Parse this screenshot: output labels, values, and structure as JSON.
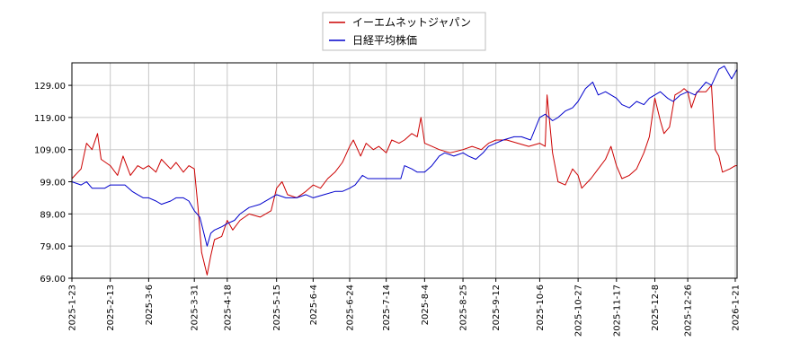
{
  "chart_data": {
    "type": "line",
    "title": "",
    "xlabel": "",
    "ylabel": "",
    "ylim": [
      69.0,
      136.0
    ],
    "xlim": [
      "2025-01-23",
      "2026-01-22"
    ],
    "grid": true,
    "legend_position": "top-center",
    "y_ticks": [
      "69.00",
      "79.00",
      "89.00",
      "99.00",
      "109.00",
      "119.00",
      "129.00"
    ],
    "x_ticks": [
      "2025-1-23",
      "2025-2-13",
      "2025-3-6",
      "2025-3-31",
      "2025-4-18",
      "2025-5-15",
      "2025-6-4",
      "2025-6-24",
      "2025-7-14",
      "2025-8-4",
      "2025-8-25",
      "2025-9-12",
      "2025-10-6",
      "2025-10-27",
      "2025-11-17",
      "2025-12-8",
      "2025-12-26",
      "2026-1-21"
    ],
    "series": [
      {
        "name": "イーエムネットジャパン",
        "color": "#cc0000",
        "points": [
          [
            "2025-01-23",
            100
          ],
          [
            "2025-01-28",
            103
          ],
          [
            "2025-01-31",
            111
          ],
          [
            "2025-02-03",
            109
          ],
          [
            "2025-02-06",
            114
          ],
          [
            "2025-02-08",
            106
          ],
          [
            "2025-02-13",
            104
          ],
          [
            "2025-02-17",
            101
          ],
          [
            "2025-02-20",
            107
          ],
          [
            "2025-02-24",
            101
          ],
          [
            "2025-02-28",
            104
          ],
          [
            "2025-03-03",
            103
          ],
          [
            "2025-03-06",
            104
          ],
          [
            "2025-03-10",
            102
          ],
          [
            "2025-03-13",
            106
          ],
          [
            "2025-03-18",
            103
          ],
          [
            "2025-03-21",
            105
          ],
          [
            "2025-03-25",
            102
          ],
          [
            "2025-03-28",
            104
          ],
          [
            "2025-03-31",
            103
          ],
          [
            "2025-04-02",
            91
          ],
          [
            "2025-04-04",
            77
          ],
          [
            "2025-04-07",
            70
          ],
          [
            "2025-04-09",
            76
          ],
          [
            "2025-04-11",
            81
          ],
          [
            "2025-04-15",
            82
          ],
          [
            "2025-04-18",
            87
          ],
          [
            "2025-04-21",
            84
          ],
          [
            "2025-04-25",
            87
          ],
          [
            "2025-04-30",
            89
          ],
          [
            "2025-05-06",
            88
          ],
          [
            "2025-05-12",
            90
          ],
          [
            "2025-05-15",
            97
          ],
          [
            "2025-05-18",
            99
          ],
          [
            "2025-05-21",
            95
          ],
          [
            "2025-05-26",
            94
          ],
          [
            "2025-05-31",
            96
          ],
          [
            "2025-06-04",
            98
          ],
          [
            "2025-06-08",
            97
          ],
          [
            "2025-06-12",
            100
          ],
          [
            "2025-06-16",
            102
          ],
          [
            "2025-06-20",
            105
          ],
          [
            "2025-06-24",
            110
          ],
          [
            "2025-06-26",
            112
          ],
          [
            "2025-06-30",
            107
          ],
          [
            "2025-07-03",
            111
          ],
          [
            "2025-07-07",
            109
          ],
          [
            "2025-07-10",
            110
          ],
          [
            "2025-07-14",
            108
          ],
          [
            "2025-07-17",
            112
          ],
          [
            "2025-07-21",
            111
          ],
          [
            "2025-07-24",
            112
          ],
          [
            "2025-07-28",
            114
          ],
          [
            "2025-07-31",
            113
          ],
          [
            "2025-08-02",
            119
          ],
          [
            "2025-08-04",
            111
          ],
          [
            "2025-08-08",
            110
          ],
          [
            "2025-08-12",
            109
          ],
          [
            "2025-08-18",
            108
          ],
          [
            "2025-08-25",
            109
          ],
          [
            "2025-08-30",
            110
          ],
          [
            "2025-09-04",
            109
          ],
          [
            "2025-09-08",
            111
          ],
          [
            "2025-09-12",
            112
          ],
          [
            "2025-09-18",
            112
          ],
          [
            "2025-09-24",
            111
          ],
          [
            "2025-09-30",
            110
          ],
          [
            "2025-10-06",
            111
          ],
          [
            "2025-10-09",
            110
          ],
          [
            "2025-10-10",
            126
          ],
          [
            "2025-10-13",
            108
          ],
          [
            "2025-10-16",
            99
          ],
          [
            "2025-10-20",
            98
          ],
          [
            "2025-10-24",
            103
          ],
          [
            "2025-10-27",
            101
          ],
          [
            "2025-10-29",
            97
          ],
          [
            "2025-11-03",
            100
          ],
          [
            "2025-11-07",
            103
          ],
          [
            "2025-11-11",
            106
          ],
          [
            "2025-11-14",
            110
          ],
          [
            "2025-11-17",
            104
          ],
          [
            "2025-11-20",
            100
          ],
          [
            "2025-11-24",
            101
          ],
          [
            "2025-11-28",
            103
          ],
          [
            "2025-12-02",
            108
          ],
          [
            "2025-12-05",
            113
          ],
          [
            "2025-12-08",
            125
          ],
          [
            "2025-12-11",
            118
          ],
          [
            "2025-12-13",
            114
          ],
          [
            "2025-12-16",
            116
          ],
          [
            "2025-12-19",
            126
          ],
          [
            "2025-12-22",
            127
          ],
          [
            "2025-12-24",
            128
          ],
          [
            "2025-12-26",
            127
          ],
          [
            "2025-12-28",
            122
          ],
          [
            "2025-12-31",
            127
          ],
          [
            "2026-01-05",
            127
          ],
          [
            "2026-01-08",
            129
          ],
          [
            "2026-01-10",
            109
          ],
          [
            "2026-01-12",
            107
          ],
          [
            "2026-01-14",
            102
          ],
          [
            "2026-01-18",
            103
          ],
          [
            "2026-01-21",
            104
          ],
          [
            "2026-01-22",
            104
          ]
        ]
      },
      {
        "name": "日経平均株価",
        "color": "#0000cc",
        "points": [
          [
            "2025-01-23",
            99
          ],
          [
            "2025-01-28",
            98
          ],
          [
            "2025-01-31",
            99
          ],
          [
            "2025-02-03",
            97
          ],
          [
            "2025-02-06",
            97
          ],
          [
            "2025-02-10",
            97
          ],
          [
            "2025-02-13",
            98
          ],
          [
            "2025-02-17",
            98
          ],
          [
            "2025-02-21",
            98
          ],
          [
            "2025-02-25",
            96
          ],
          [
            "2025-02-28",
            95
          ],
          [
            "2025-03-03",
            94
          ],
          [
            "2025-03-06",
            94
          ],
          [
            "2025-03-10",
            93
          ],
          [
            "2025-03-13",
            92
          ],
          [
            "2025-03-18",
            93
          ],
          [
            "2025-03-21",
            94
          ],
          [
            "2025-03-25",
            94
          ],
          [
            "2025-03-28",
            93
          ],
          [
            "2025-03-31",
            90
          ],
          [
            "2025-04-03",
            88
          ],
          [
            "2025-04-07",
            79
          ],
          [
            "2025-04-09",
            83
          ],
          [
            "2025-04-11",
            84
          ],
          [
            "2025-04-15",
            85
          ],
          [
            "2025-04-18",
            86
          ],
          [
            "2025-04-22",
            87
          ],
          [
            "2025-04-25",
            89
          ],
          [
            "2025-04-30",
            91
          ],
          [
            "2025-05-06",
            92
          ],
          [
            "2025-05-12",
            94
          ],
          [
            "2025-05-15",
            95
          ],
          [
            "2025-05-20",
            94
          ],
          [
            "2025-05-26",
            94
          ],
          [
            "2025-05-31",
            95
          ],
          [
            "2025-06-04",
            94
          ],
          [
            "2025-06-10",
            95
          ],
          [
            "2025-06-16",
            96
          ],
          [
            "2025-06-20",
            96
          ],
          [
            "2025-06-24",
            97
          ],
          [
            "2025-06-27",
            98
          ],
          [
            "2025-07-01",
            101
          ],
          [
            "2025-07-04",
            100
          ],
          [
            "2025-07-08",
            100
          ],
          [
            "2025-07-14",
            100
          ],
          [
            "2025-07-18",
            100
          ],
          [
            "2025-07-22",
            100
          ],
          [
            "2025-07-24",
            104
          ],
          [
            "2025-07-28",
            103
          ],
          [
            "2025-07-31",
            102
          ],
          [
            "2025-08-04",
            102
          ],
          [
            "2025-08-08",
            104
          ],
          [
            "2025-08-12",
            107
          ],
          [
            "2025-08-15",
            108
          ],
          [
            "2025-08-20",
            107
          ],
          [
            "2025-08-25",
            108
          ],
          [
            "2025-08-28",
            107
          ],
          [
            "2025-09-01",
            106
          ],
          [
            "2025-09-05",
            108
          ],
          [
            "2025-09-08",
            110
          ],
          [
            "2025-09-12",
            111
          ],
          [
            "2025-09-16",
            112
          ],
          [
            "2025-09-22",
            113
          ],
          [
            "2025-09-26",
            113
          ],
          [
            "2025-10-01",
            112
          ],
          [
            "2025-10-06",
            119
          ],
          [
            "2025-10-09",
            120
          ],
          [
            "2025-10-13",
            118
          ],
          [
            "2025-10-16",
            119
          ],
          [
            "2025-10-20",
            121
          ],
          [
            "2025-10-24",
            122
          ],
          [
            "2025-10-27",
            124
          ],
          [
            "2025-10-31",
            128
          ],
          [
            "2025-11-04",
            130
          ],
          [
            "2025-11-07",
            126
          ],
          [
            "2025-11-11",
            127
          ],
          [
            "2025-11-14",
            126
          ],
          [
            "2025-11-17",
            125
          ],
          [
            "2025-11-20",
            123
          ],
          [
            "2025-11-24",
            122
          ],
          [
            "2025-11-28",
            124
          ],
          [
            "2025-12-02",
            123
          ],
          [
            "2025-12-05",
            125
          ],
          [
            "2025-12-08",
            126
          ],
          [
            "2025-12-11",
            127
          ],
          [
            "2025-12-15",
            125
          ],
          [
            "2025-12-18",
            124
          ],
          [
            "2025-12-22",
            126
          ],
          [
            "2025-12-26",
            127
          ],
          [
            "2025-12-30",
            126
          ],
          [
            "2026-01-05",
            130
          ],
          [
            "2026-01-08",
            129
          ],
          [
            "2026-01-12",
            134
          ],
          [
            "2026-01-15",
            135
          ],
          [
            "2026-01-19",
            131
          ],
          [
            "2026-01-22",
            134
          ]
        ]
      }
    ]
  }
}
